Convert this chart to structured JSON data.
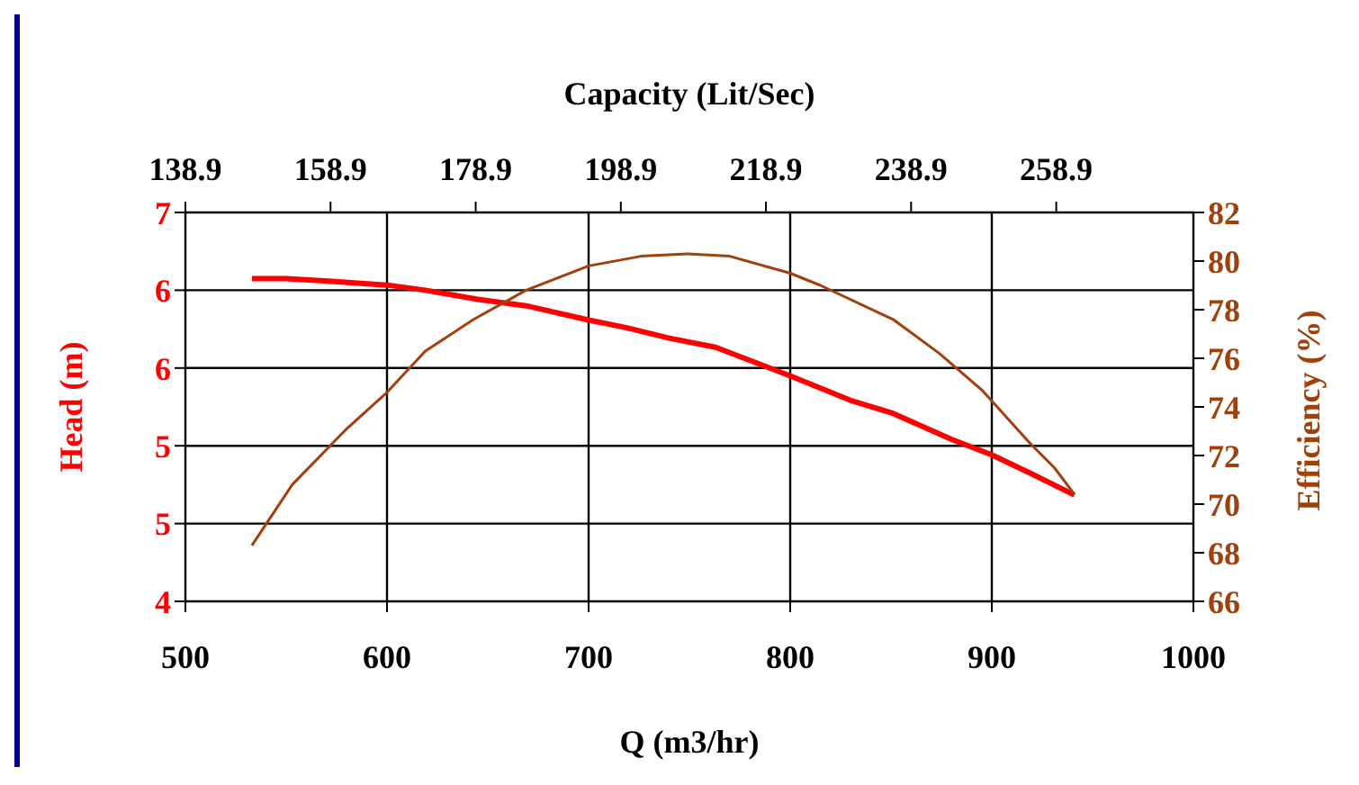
{
  "chart_data": {
    "type": "line",
    "x2label": "Capacity (Lit/Sec)",
    "xlabel": "Q (m3/hr)",
    "ylabel": "Head (m)",
    "y2label": "Efficiency (%)",
    "xlim": [
      500,
      1000
    ],
    "xticks": [
      500,
      600,
      700,
      800,
      900,
      1000
    ],
    "x2lim": [
      138.9,
      277.8
    ],
    "x2ticks": [
      138.9,
      158.9,
      178.9,
      198.9,
      218.9,
      238.9,
      258.9
    ],
    "ylim": [
      4,
      7
    ],
    "yticks": [
      {
        "value": 4,
        "label": "4"
      },
      {
        "value": 4.6,
        "label": "5"
      },
      {
        "value": 5.2,
        "label": "5"
      },
      {
        "value": 5.8,
        "label": "6"
      },
      {
        "value": 6.4,
        "label": "6"
      },
      {
        "value": 7,
        "label": "7"
      }
    ],
    "y2lim": [
      66,
      82
    ],
    "y2ticks": [
      66,
      68,
      70,
      72,
      74,
      76,
      78,
      80,
      82
    ],
    "grid": true,
    "marker": "none",
    "series": [
      {
        "color": "#ff0000",
        "x": [
          533,
          550,
          571,
          600,
          619,
          645,
          669,
          700,
          719,
          740,
          763,
          800,
          830,
          851,
          880,
          900,
          919,
          941
        ],
        "values": [
          6.49,
          6.49,
          6.47,
          6.44,
          6.4,
          6.33,
          6.28,
          6.17,
          6.11,
          6.03,
          5.96,
          5.74,
          5.55,
          5.45,
          5.25,
          5.13,
          4.99,
          4.82
        ]
      },
      {
        "color": "#a0400a",
        "axis": "y2",
        "x": [
          533,
          553,
          580,
          600,
          619,
          643,
          669,
          700,
          726,
          749,
          770,
          800,
          815,
          851,
          874,
          895,
          919,
          931,
          941
        ],
        "values": [
          68.3,
          70.8,
          73.1,
          74.6,
          76.3,
          77.6,
          78.8,
          79.8,
          80.2,
          80.3,
          80.2,
          79.5,
          79.0,
          77.6,
          76.2,
          74.7,
          72.5,
          71.5,
          70.4
        ]
      }
    ]
  }
}
